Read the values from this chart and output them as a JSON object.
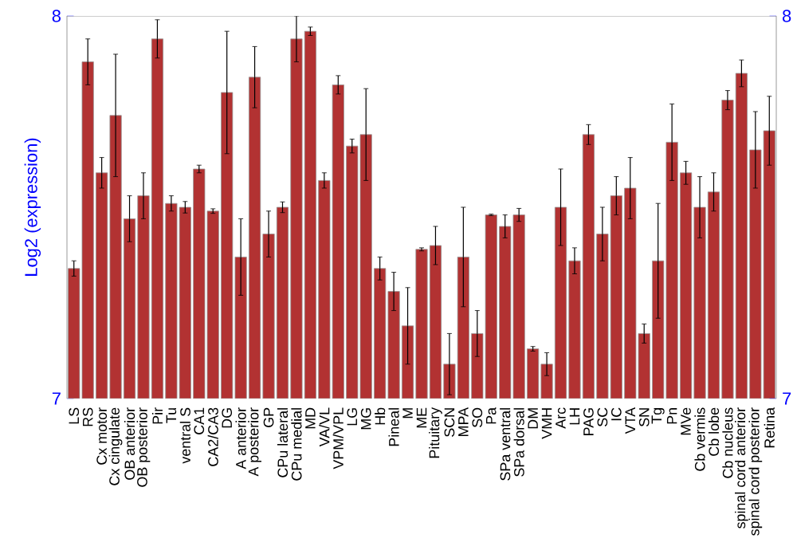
{
  "chart_data": {
    "type": "bar",
    "ylabel": "Log2 (expression)",
    "categories": [
      "LS",
      "RS",
      "Cx motor",
      "Cx cingulate",
      "OB anterior",
      "OB posterior",
      "Pir",
      "Tu",
      "ventral S",
      "CA1",
      "CA2/CA3",
      "DG",
      "A anterior",
      "A posterior",
      "GP",
      "CPu lateral",
      "CPu medial",
      "MD",
      "VA/VL",
      "VPM/VPL",
      "LG",
      "MG",
      "Hb",
      "Pineal",
      "M",
      "ME",
      "Pituitary",
      "SCN",
      "MPA",
      "SO",
      "Pa",
      "SPa ventral",
      "SPa dorsal",
      "DM",
      "VMH",
      "Arc",
      "LH",
      "PAG",
      "SC",
      "IC",
      "VTA",
      "SN",
      "Tg",
      "Pn",
      "MVe",
      "Cb vermis",
      "Cb lobe",
      "Cb nucleus",
      "spinal cord anterior",
      "spinal cord posterior",
      "Retina"
    ],
    "values": [
      7.34,
      7.88,
      7.59,
      7.74,
      7.47,
      7.53,
      7.94,
      7.51,
      7.5,
      7.6,
      7.49,
      7.8,
      7.37,
      7.84,
      7.43,
      7.5,
      7.94,
      7.96,
      7.57,
      7.82,
      7.66,
      7.69,
      7.34,
      7.28,
      7.19,
      7.39,
      7.4,
      7.09,
      7.37,
      7.17,
      7.48,
      7.45,
      7.48,
      7.13,
      7.09,
      7.5,
      7.36,
      7.69,
      7.43,
      7.53,
      7.55,
      7.17,
      7.36,
      7.67,
      7.59,
      7.5,
      7.54,
      7.78,
      7.85,
      7.65,
      7.7
    ],
    "errors": [
      0.02,
      0.06,
      0.04,
      0.16,
      0.06,
      0.06,
      0.05,
      0.02,
      0.015,
      0.01,
      0.006,
      0.16,
      0.1,
      0.08,
      0.06,
      0.014,
      0.06,
      0.011,
      0.02,
      0.024,
      0.018,
      0.12,
      0.03,
      0.05,
      0.1,
      0.004,
      0.05,
      0.08,
      0.13,
      0.06,
      0.002,
      0.03,
      0.017,
      0.006,
      0.03,
      0.1,
      0.034,
      0.026,
      0.07,
      0.05,
      0.08,
      0.025,
      0.15,
      0.1,
      0.03,
      0.08,
      0.05,
      0.025,
      0.035,
      0.1,
      0.09
    ],
    "color": "#b23232",
    "ylim": [
      7,
      8
    ],
    "yticks": [
      7,
      8
    ],
    "y2lim": [
      7,
      8
    ],
    "y2ticks": [
      7,
      8
    ]
  }
}
